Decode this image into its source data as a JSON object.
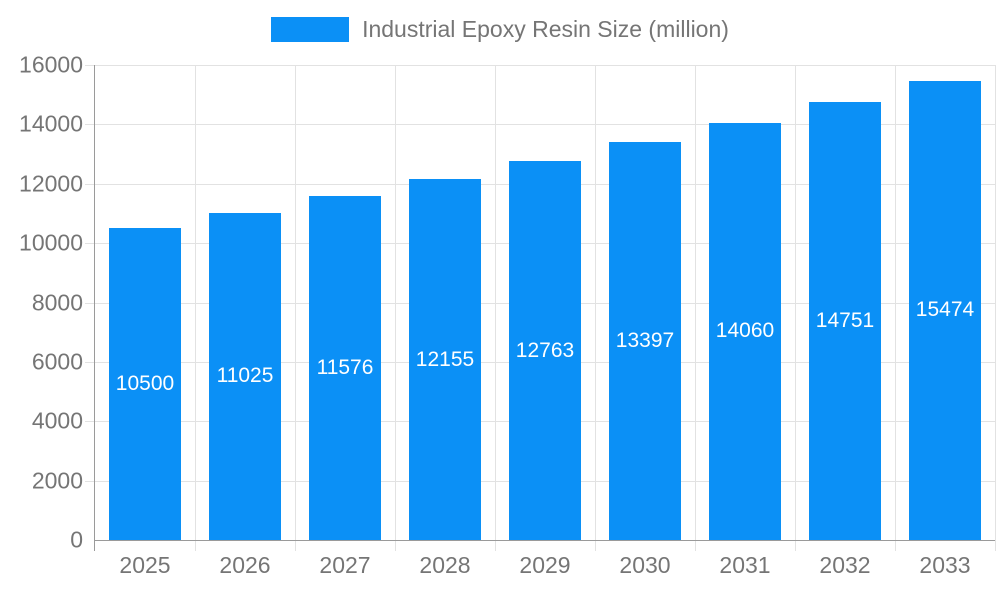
{
  "chart_data": {
    "type": "bar",
    "title": "Industrial Epoxy Resin Size (million)",
    "categories": [
      "2025",
      "2026",
      "2027",
      "2028",
      "2029",
      "2030",
      "2031",
      "2032",
      "2033"
    ],
    "values": [
      10500,
      11025,
      11576,
      12155,
      12763,
      13397,
      14060,
      14751,
      15474
    ],
    "xlabel": "",
    "ylabel": "",
    "ylim": [
      0,
      16000
    ],
    "ytick_step": 2000,
    "yticks": [
      "0",
      "2000",
      "4000",
      "6000",
      "8000",
      "10000",
      "12000",
      "14000",
      "16000"
    ],
    "grid": true,
    "legend_position": "top",
    "legend_label": "Industrial Epoxy Resin Size (million)",
    "bar_labels_visible": true,
    "colors": {
      "bar": "#0b90f6",
      "bar_value_label": "#ffffff",
      "gridline": "#e2e2e2",
      "axis_line": "#9a9a9a",
      "tick": "#d6d6d6",
      "axis_text": "#757575",
      "background": "#ffffff"
    }
  }
}
